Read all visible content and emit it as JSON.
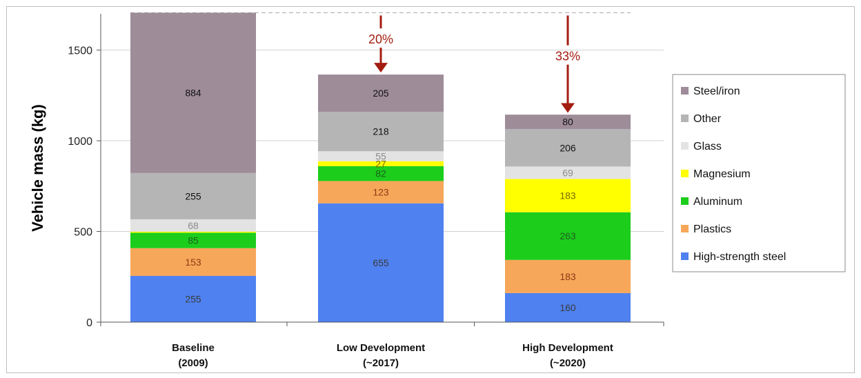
{
  "chart_data": {
    "type": "bar",
    "stacked": true,
    "ylabel": "Vehicle mass (kg)",
    "xlabel": "",
    "title": "",
    "ylim": [
      0,
      1700
    ],
    "yticks": [
      0,
      500,
      1000,
      1500
    ],
    "grid": true,
    "legend_position": "right",
    "categories": [
      [
        "Baseline",
        "(2009)"
      ],
      [
        "Low Development",
        "(~2017)"
      ],
      [
        "High Development",
        "(~2020)"
      ]
    ],
    "series": [
      {
        "name": "High-strength steel",
        "color": "#4f81f0",
        "label_color": "#3b3b3b",
        "values": [
          255,
          655,
          160
        ]
      },
      {
        "name": "Plastics",
        "color": "#f7a75a",
        "label_color": "#8a3b12",
        "values": [
          153,
          123,
          183
        ]
      },
      {
        "name": "Aluminum",
        "color": "#1ccd1c",
        "label_color": "#1d5f1d",
        "values": [
          85,
          82,
          263
        ]
      },
      {
        "name": "Magnesium",
        "color": "#ffff00",
        "label_color": "#7a6a00",
        "values": [
          6,
          27,
          183
        ],
        "labels": [
          "",
          "27",
          "183"
        ]
      },
      {
        "name": "Glass",
        "color": "#e3e3e3",
        "label_color": "#8a8a8a",
        "values": [
          68,
          55,
          69
        ]
      },
      {
        "name": "Other",
        "color": "#b5b5b5",
        "label_color": "#111111",
        "values": [
          255,
          218,
          206
        ]
      },
      {
        "name": "Steel/iron",
        "color": "#9e8c99",
        "label_color": "#111111",
        "values": [
          884,
          205,
          80
        ]
      }
    ],
    "reference_line": {
      "value": 1706,
      "style": "dashed",
      "color": "#b0b0b0"
    },
    "annotations": [
      {
        "category_index": 1,
        "text": "20%",
        "color": "#a31c10",
        "from": 1706,
        "to": 1361
      },
      {
        "category_index": 2,
        "text": "33%",
        "color": "#a31c10",
        "from": 1706,
        "to": 1139
      }
    ]
  }
}
